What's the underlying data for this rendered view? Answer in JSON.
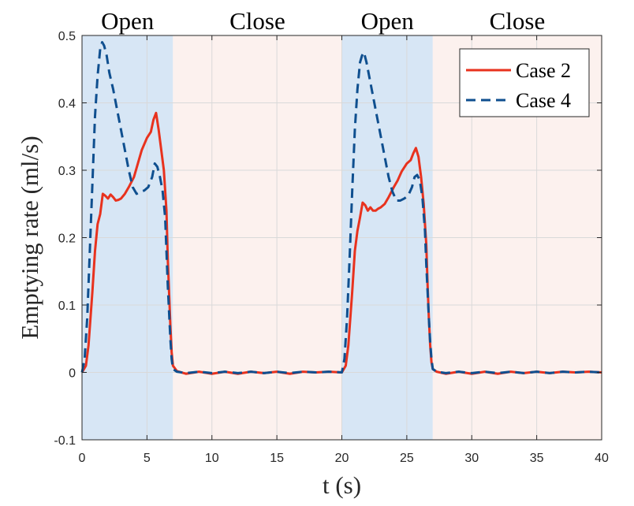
{
  "chart_data": {
    "type": "line",
    "title": "",
    "xlabel": "t (s)",
    "ylabel": "Emptying rate (ml/s)",
    "xlim": [
      0,
      40
    ],
    "ylim": [
      -0.1,
      0.5
    ],
    "x_ticks": [
      0,
      5,
      10,
      15,
      20,
      25,
      30,
      35,
      40
    ],
    "y_ticks": [
      -0.1,
      0,
      0.1,
      0.2,
      0.3,
      0.4,
      0.5
    ],
    "x_tick_labels": [
      "0",
      "5",
      "10",
      "15",
      "20",
      "25",
      "30",
      "35",
      "40"
    ],
    "y_tick_labels": [
      "-0.1",
      "0",
      "0.1",
      "0.2",
      "0.3",
      "0.4",
      "0.5"
    ],
    "grid": true,
    "legend_position": "top-right",
    "phases": [
      {
        "label": "Open",
        "x_start": 0,
        "x_end": 7,
        "color": "#d7e6f5"
      },
      {
        "label": "Close",
        "x_start": 7,
        "x_end": 20,
        "color": "#fcf1ee"
      },
      {
        "label": "Open",
        "x_start": 20,
        "x_end": 27,
        "color": "#d7e6f5"
      },
      {
        "label": "Close",
        "x_start": 27,
        "x_end": 40,
        "color": "#fcf1ee"
      }
    ],
    "series": [
      {
        "name": "Case 2",
        "color": "#e8321e",
        "style": "solid",
        "points": [
          [
            0,
            0
          ],
          [
            0.3,
            0.01
          ],
          [
            0.5,
            0.04
          ],
          [
            0.8,
            0.12
          ],
          [
            1.0,
            0.18
          ],
          [
            1.2,
            0.22
          ],
          [
            1.4,
            0.235
          ],
          [
            1.6,
            0.265
          ],
          [
            1.8,
            0.262
          ],
          [
            2.0,
            0.258
          ],
          [
            2.2,
            0.264
          ],
          [
            2.4,
            0.26
          ],
          [
            2.6,
            0.255
          ],
          [
            2.8,
            0.256
          ],
          [
            3.0,
            0.258
          ],
          [
            3.3,
            0.265
          ],
          [
            3.6,
            0.275
          ],
          [
            4.0,
            0.29
          ],
          [
            4.3,
            0.31
          ],
          [
            4.6,
            0.33
          ],
          [
            5.0,
            0.348
          ],
          [
            5.3,
            0.357
          ],
          [
            5.5,
            0.375
          ],
          [
            5.7,
            0.385
          ],
          [
            5.9,
            0.36
          ],
          [
            6.1,
            0.33
          ],
          [
            6.3,
            0.3
          ],
          [
            6.5,
            0.24
          ],
          [
            6.6,
            0.17
          ],
          [
            6.7,
            0.12
          ],
          [
            6.8,
            0.07
          ],
          [
            6.9,
            0.03
          ],
          [
            7.0,
            0.01
          ],
          [
            7.3,
            0.002
          ],
          [
            8,
            -0.002
          ],
          [
            9,
            0.001
          ],
          [
            10,
            -0.002
          ],
          [
            11,
            0.001
          ],
          [
            12,
            -0.002
          ],
          [
            13,
            0.001
          ],
          [
            14,
            -0.001
          ],
          [
            15,
            0.001
          ],
          [
            16,
            -0.002
          ],
          [
            17,
            0.001
          ],
          [
            18,
            0.0
          ],
          [
            19,
            0.001
          ],
          [
            20,
            0.0
          ],
          [
            20.3,
            0.01
          ],
          [
            20.5,
            0.04
          ],
          [
            20.8,
            0.12
          ],
          [
            21.0,
            0.18
          ],
          [
            21.2,
            0.21
          ],
          [
            21.4,
            0.23
          ],
          [
            21.6,
            0.252
          ],
          [
            21.8,
            0.248
          ],
          [
            22.0,
            0.24
          ],
          [
            22.2,
            0.245
          ],
          [
            22.4,
            0.24
          ],
          [
            22.6,
            0.24
          ],
          [
            22.8,
            0.243
          ],
          [
            23.0,
            0.245
          ],
          [
            23.3,
            0.25
          ],
          [
            23.6,
            0.26
          ],
          [
            24.0,
            0.275
          ],
          [
            24.3,
            0.285
          ],
          [
            24.6,
            0.298
          ],
          [
            25.0,
            0.31
          ],
          [
            25.3,
            0.315
          ],
          [
            25.5,
            0.325
          ],
          [
            25.7,
            0.333
          ],
          [
            25.9,
            0.32
          ],
          [
            26.1,
            0.29
          ],
          [
            26.3,
            0.25
          ],
          [
            26.5,
            0.19
          ],
          [
            26.6,
            0.13
          ],
          [
            26.7,
            0.08
          ],
          [
            26.8,
            0.04
          ],
          [
            26.9,
            0.015
          ],
          [
            27.0,
            0.005
          ],
          [
            27.3,
            0.001
          ],
          [
            28,
            -0.002
          ],
          [
            29,
            0.001
          ],
          [
            30,
            -0.002
          ],
          [
            31,
            0.001
          ],
          [
            32,
            -0.002
          ],
          [
            33,
            0.001
          ],
          [
            34,
            -0.001
          ],
          [
            35,
            0.001
          ],
          [
            36,
            -0.001
          ],
          [
            37,
            0.001
          ],
          [
            38,
            0.0
          ],
          [
            39,
            0.001
          ],
          [
            40,
            0.0
          ]
        ]
      },
      {
        "name": "Case 4",
        "color": "#0f4f8f",
        "style": "dashed",
        "points": [
          [
            0,
            0
          ],
          [
            0.2,
            0.02
          ],
          [
            0.4,
            0.08
          ],
          [
            0.6,
            0.18
          ],
          [
            0.8,
            0.28
          ],
          [
            1.0,
            0.38
          ],
          [
            1.2,
            0.44
          ],
          [
            1.4,
            0.48
          ],
          [
            1.55,
            0.49
          ],
          [
            1.7,
            0.485
          ],
          [
            1.9,
            0.47
          ],
          [
            2.1,
            0.445
          ],
          [
            2.4,
            0.42
          ],
          [
            2.7,
            0.39
          ],
          [
            3.0,
            0.36
          ],
          [
            3.3,
            0.33
          ],
          [
            3.6,
            0.3
          ],
          [
            3.9,
            0.275
          ],
          [
            4.2,
            0.265
          ],
          [
            4.5,
            0.268
          ],
          [
            4.8,
            0.27
          ],
          [
            5.1,
            0.275
          ],
          [
            5.4,
            0.29
          ],
          [
            5.6,
            0.31
          ],
          [
            5.8,
            0.305
          ],
          [
            6.0,
            0.29
          ],
          [
            6.2,
            0.27
          ],
          [
            6.4,
            0.23
          ],
          [
            6.5,
            0.18
          ],
          [
            6.6,
            0.13
          ],
          [
            6.7,
            0.09
          ],
          [
            6.8,
            0.05
          ],
          [
            6.9,
            0.02
          ],
          [
            7.0,
            0.005
          ],
          [
            7.3,
            0.001
          ],
          [
            8,
            -0.001
          ],
          [
            9,
            0.001
          ],
          [
            10,
            -0.001
          ],
          [
            11,
            0.001
          ],
          [
            12,
            -0.001
          ],
          [
            13,
            0.001
          ],
          [
            14,
            -0.001
          ],
          [
            15,
            0.001
          ],
          [
            16,
            -0.001
          ],
          [
            17,
            0.001
          ],
          [
            18,
            0.0
          ],
          [
            19,
            0.001
          ],
          [
            20,
            0.0
          ],
          [
            20.2,
            0.02
          ],
          [
            20.4,
            0.08
          ],
          [
            20.6,
            0.17
          ],
          [
            20.8,
            0.27
          ],
          [
            21.0,
            0.36
          ],
          [
            21.2,
            0.42
          ],
          [
            21.4,
            0.46
          ],
          [
            21.55,
            0.47
          ],
          [
            21.7,
            0.475
          ],
          [
            21.9,
            0.46
          ],
          [
            22.1,
            0.44
          ],
          [
            22.4,
            0.41
          ],
          [
            22.7,
            0.38
          ],
          [
            23.0,
            0.35
          ],
          [
            23.3,
            0.32
          ],
          [
            23.6,
            0.29
          ],
          [
            23.9,
            0.268
          ],
          [
            24.2,
            0.255
          ],
          [
            24.5,
            0.255
          ],
          [
            24.8,
            0.258
          ],
          [
            25.1,
            0.262
          ],
          [
            25.4,
            0.275
          ],
          [
            25.6,
            0.29
          ],
          [
            25.8,
            0.293
          ],
          [
            26.0,
            0.285
          ],
          [
            26.2,
            0.26
          ],
          [
            26.4,
            0.21
          ],
          [
            26.5,
            0.16
          ],
          [
            26.6,
            0.12
          ],
          [
            26.7,
            0.08
          ],
          [
            26.8,
            0.045
          ],
          [
            26.9,
            0.02
          ],
          [
            27.0,
            0.005
          ],
          [
            27.3,
            0.001
          ],
          [
            28,
            -0.001
          ],
          [
            29,
            0.001
          ],
          [
            30,
            -0.001
          ],
          [
            31,
            0.001
          ],
          [
            32,
            -0.001
          ],
          [
            33,
            0.001
          ],
          [
            34,
            -0.001
          ],
          [
            35,
            0.001
          ],
          [
            36,
            -0.001
          ],
          [
            37,
            0.001
          ],
          [
            38,
            0.0
          ],
          [
            39,
            0.001
          ],
          [
            40,
            0.0
          ]
        ]
      }
    ]
  }
}
